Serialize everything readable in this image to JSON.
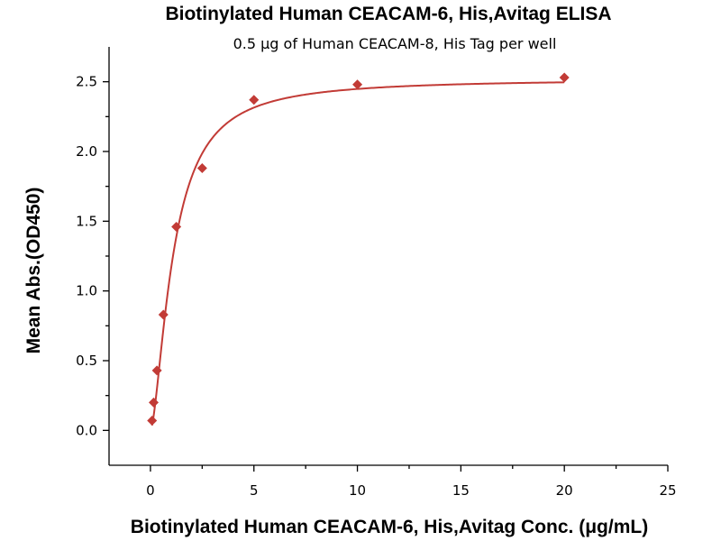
{
  "chart_data": {
    "type": "scatter",
    "title": "Biotinylated Human CEACAM-6, His,Avitag ELISA",
    "subtitle": "0.5 μg of Human CEACAM-8, His Tag per well",
    "xlabel": "Biotinylated Human CEACAM-6, His,Avitag Conc. (μg/mL)",
    "ylabel": "Mean Abs.(OD450)",
    "xlim": [
      -2,
      25
    ],
    "ylim": [
      -0.25,
      2.75
    ],
    "xticks": [
      0,
      5,
      10,
      15,
      20,
      25
    ],
    "yticks": [
      0.0,
      0.5,
      1.0,
      1.5,
      2.0,
      2.5
    ],
    "xtick_labels": [
      "0",
      "5",
      "10",
      "15",
      "20",
      "25"
    ],
    "ytick_labels": [
      "0.0",
      "0.5",
      "1.0",
      "1.5",
      "2.0",
      "2.5"
    ],
    "marker": "diamond",
    "color": "#c23b36",
    "grid": false,
    "series": [
      {
        "points": [
          {
            "x": 0.078,
            "y": 0.07
          },
          {
            "x": 0.156,
            "y": 0.2
          },
          {
            "x": 0.313,
            "y": 0.43
          },
          {
            "x": 0.625,
            "y": 0.83
          },
          {
            "x": 1.25,
            "y": 1.46
          },
          {
            "x": 2.5,
            "y": 1.88
          },
          {
            "x": 5,
            "y": 2.37
          },
          {
            "x": 10,
            "y": 2.48
          },
          {
            "x": 20,
            "y": 2.53
          }
        ]
      }
    ],
    "fit_curve": {
      "type": "4PL",
      "bottom": 0.0,
      "top": 2.52,
      "ec50": 1.1,
      "hill": 1.6
    }
  }
}
